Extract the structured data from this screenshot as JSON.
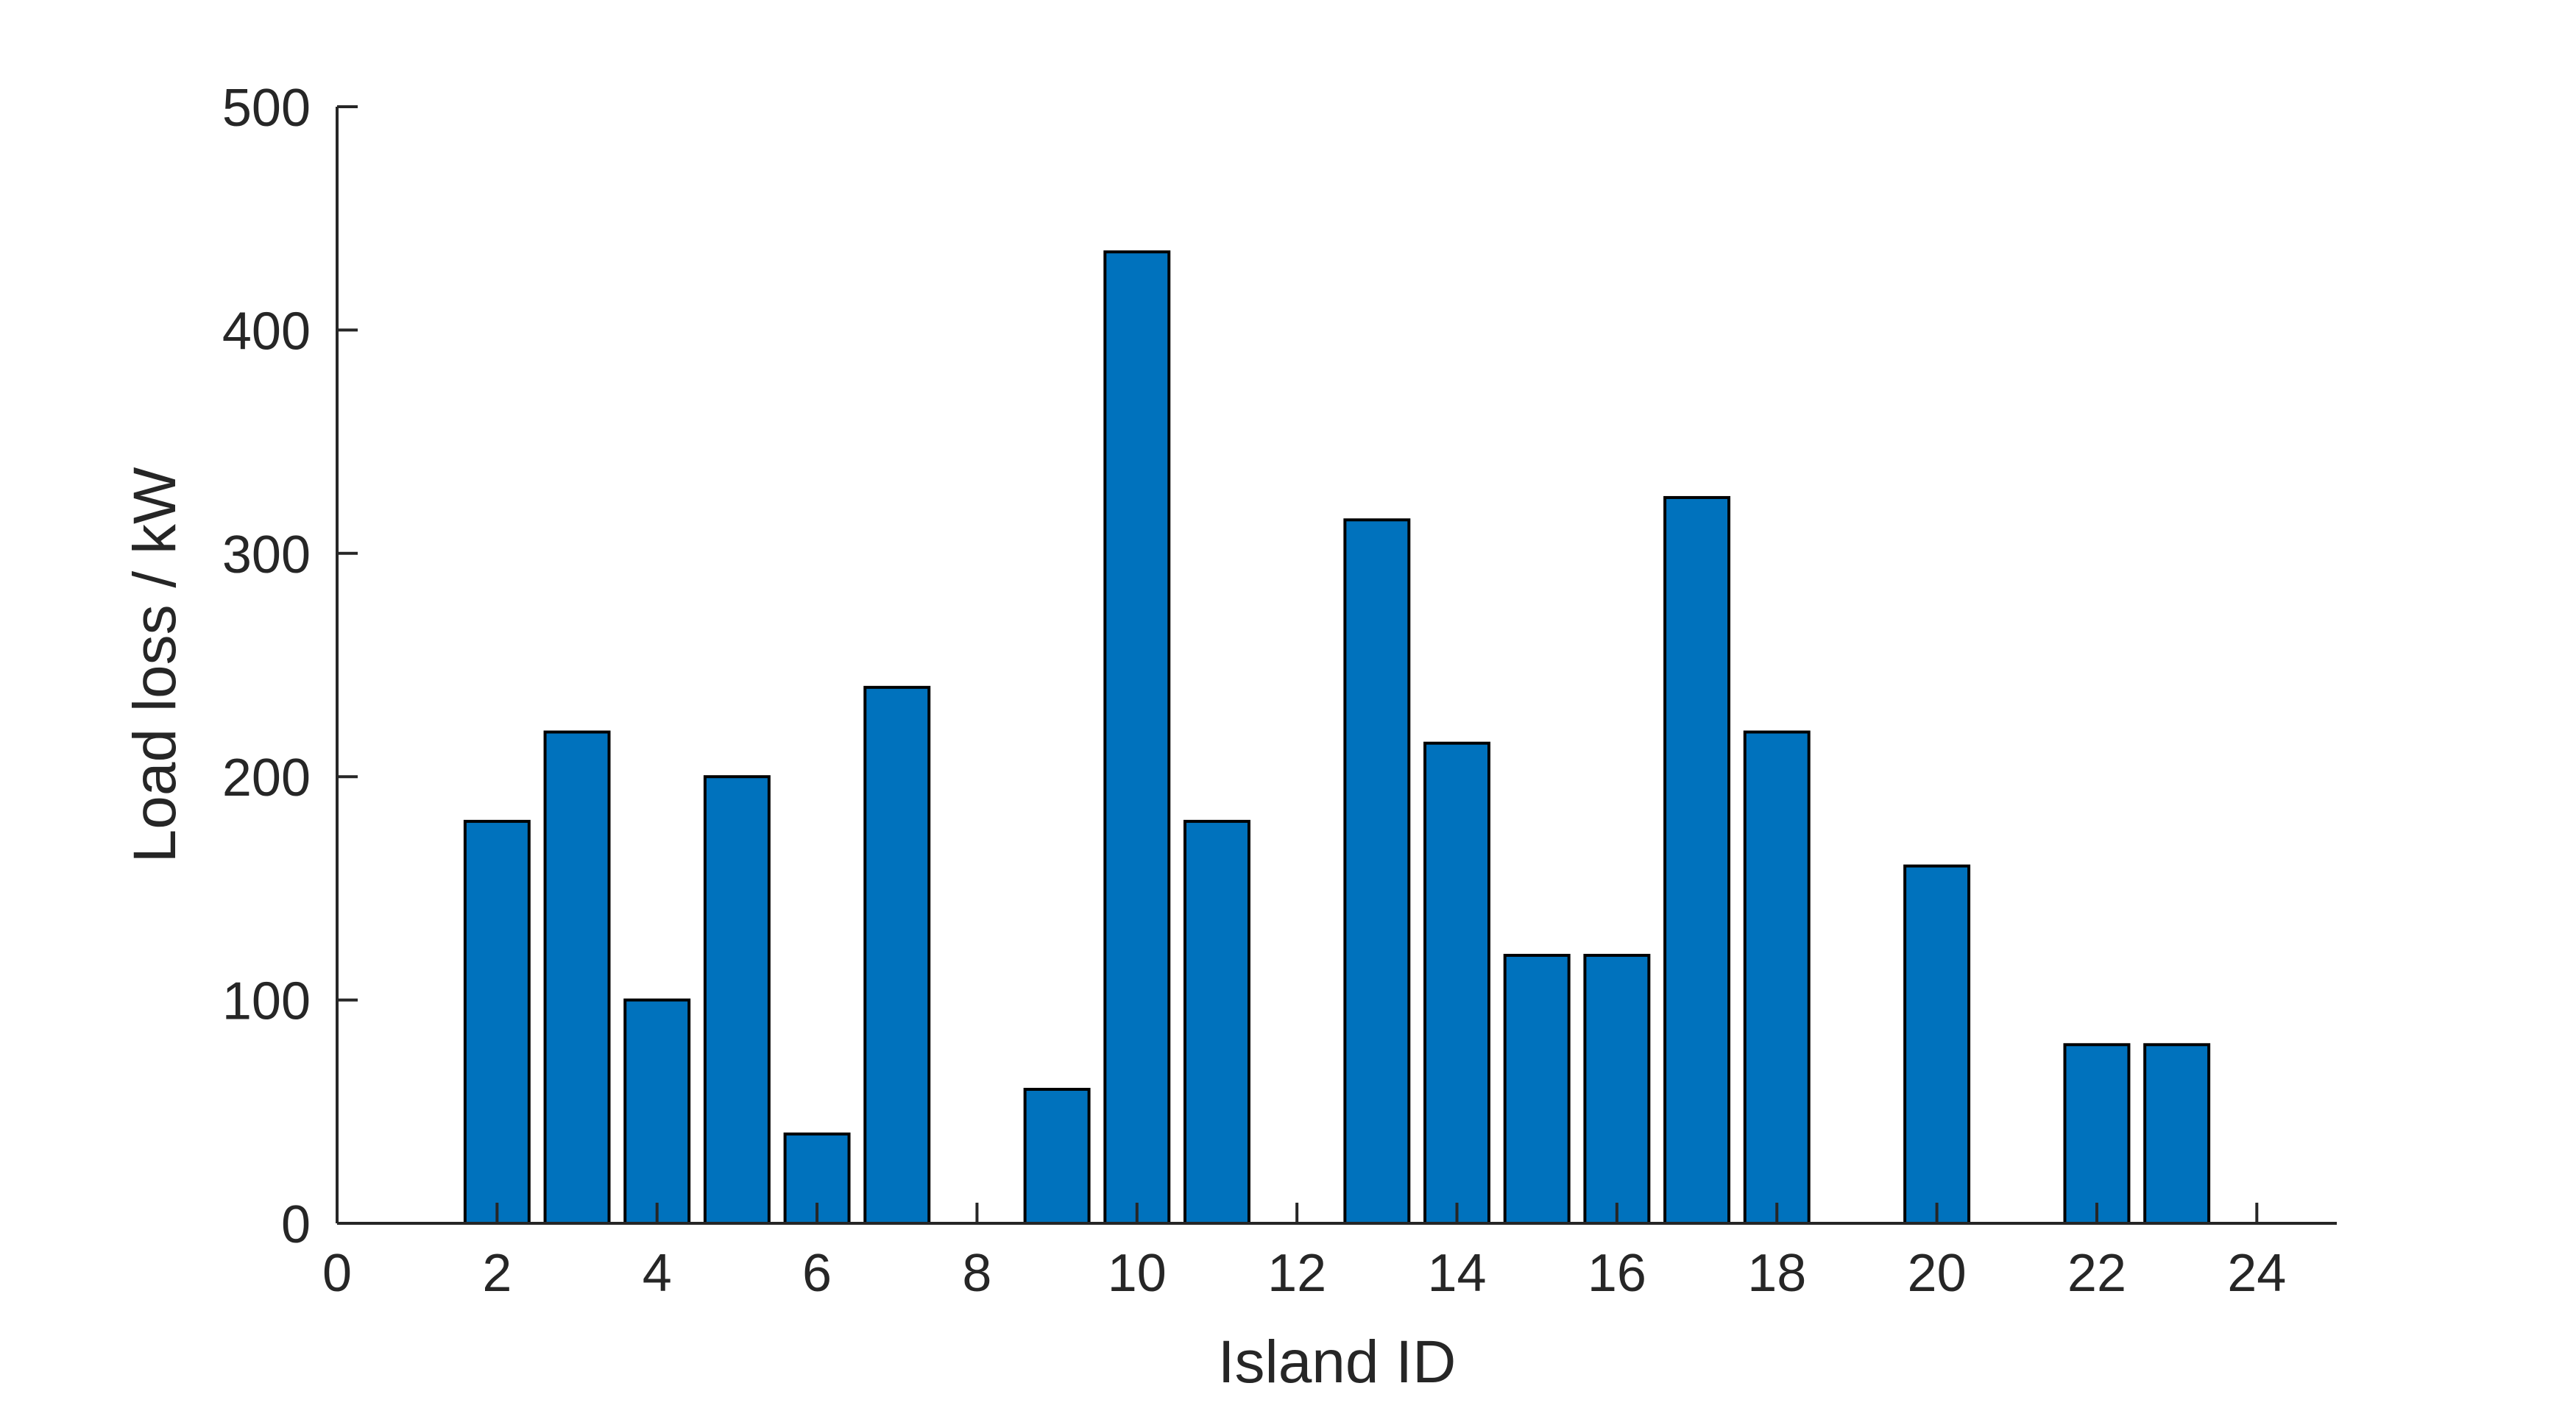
{
  "chart_data": {
    "type": "bar",
    "title": "",
    "xlabel": "Island ID",
    "ylabel": "Load loss / kW",
    "xlim": [
      0,
      25
    ],
    "ylim": [
      0,
      500
    ],
    "xticks": [
      0,
      2,
      4,
      6,
      8,
      10,
      12,
      14,
      16,
      18,
      20,
      22,
      24
    ],
    "yticks": [
      0,
      100,
      200,
      300,
      400,
      500
    ],
    "grid": false,
    "bar_color": "#0072BD",
    "x": [
      2,
      3,
      4,
      5,
      6,
      7,
      9,
      10,
      11,
      13,
      14,
      15,
      16,
      17,
      18,
      20,
      22,
      23
    ],
    "values": [
      180,
      220,
      100,
      200,
      40,
      240,
      60,
      435,
      180,
      315,
      215,
      120,
      120,
      325,
      220,
      160,
      80,
      80
    ]
  }
}
